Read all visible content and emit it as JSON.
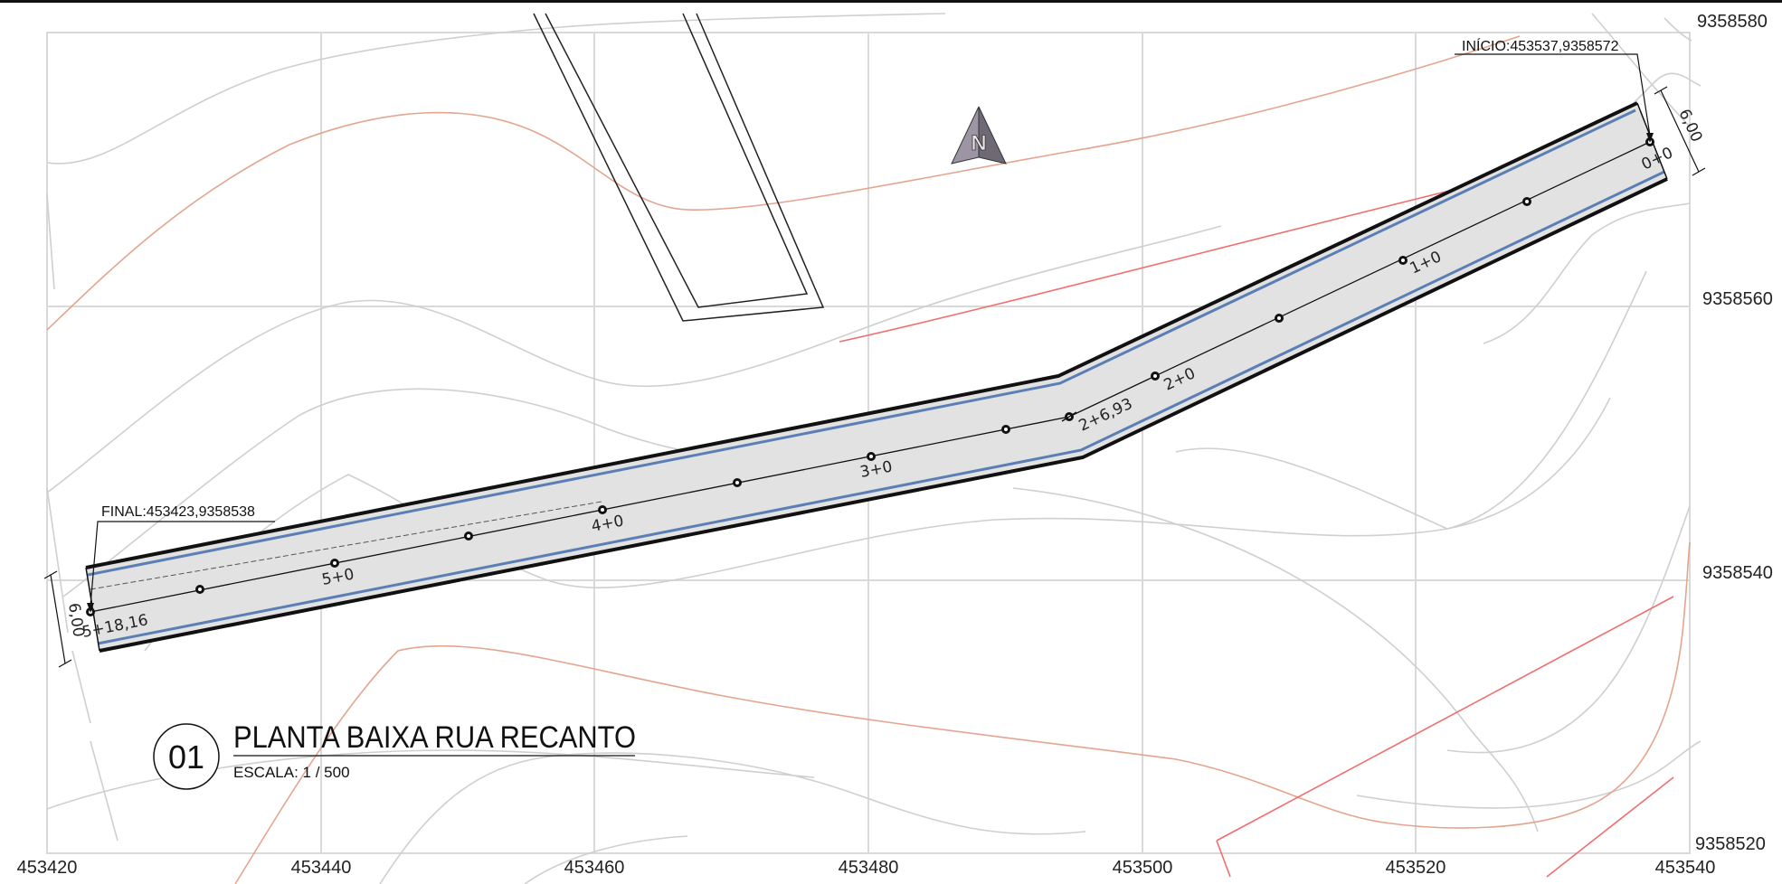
{
  "drawing": {
    "title": "PLANTA BAIXA RUA RECANTO",
    "number": "01",
    "scale": "ESCALA: 1 / 500",
    "north_symbol": "N"
  },
  "grid": {
    "x_labels": [
      "453420",
      "453440",
      "453460",
      "453480",
      "453500",
      "453520",
      "453540"
    ],
    "y_labels": [
      "9358580",
      "9358560",
      "9358540",
      "9358520"
    ]
  },
  "annotations": {
    "start": "INÍCIO:453537,9358572",
    "end": "FINAL:453423,9358538",
    "width_start": "6,00",
    "width_end": "6,00"
  },
  "stations": [
    "0+0",
    "1+0",
    "2+0",
    "2+6,93",
    "3+0",
    "4+0",
    "5+0",
    "5+18,16"
  ],
  "colors": {
    "road_fill": "#e2e2e2",
    "road_edge": "#111111",
    "road_curb": "#5b7fb5",
    "grid": "#d9d9d9",
    "contour": "#cfcfcf",
    "contour_index": "#e3a58f",
    "property_line": "#f06e6e",
    "north_arrow": "#8a8393"
  },
  "icons": {
    "north_arrow": "north-arrow-icon",
    "station_marker": "station-marker-icon",
    "callout_circle": "drawing-number-circle"
  }
}
